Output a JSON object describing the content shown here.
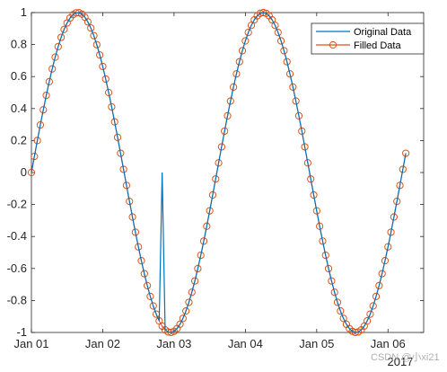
{
  "chart_data": {
    "type": "line",
    "title": "",
    "xlabel": "",
    "ylabel": "",
    "x_tick_labels": [
      "Jan 01",
      "Jan 02",
      "Jan 03",
      "Jan 04",
      "Jan 05",
      "Jan 06"
    ],
    "x_year_label": "2017",
    "y_tick_labels": [
      "-1",
      "-0.8",
      "-0.6",
      "-0.4",
      "-0.2",
      "0",
      "0.2",
      "0.4",
      "0.6",
      "0.8",
      "1"
    ],
    "ylim": [
      -1,
      1
    ],
    "xlim": [
      "2017-01-01 00:00",
      "2017-01-06 12:00"
    ],
    "grid": false,
    "legend_position": "top-right",
    "series": [
      {
        "name": "Original Data",
        "color": "#0072BD",
        "marker": "none",
        "description": "sin(2*pi*t/2.6 days) sampled hourly from 2017-01-01 00:00 to 2017-01-06 06:00 with two missing samples replaced by 0 near 2017-01-02 20:00",
        "x_start": "2017-01-01 00:00",
        "x_end": "2017-01-06 06:00",
        "period_days": 2.6,
        "missing_values_at": [
          "2017-01-02 20:00"
        ],
        "missing_value_shown_as": 0,
        "values_sample_every_6h": [
          0,
          0.56,
          0.93,
          0.97,
          0.66,
          0.12,
          -0.46,
          -0.88,
          -0.99,
          -0.75,
          -0.24,
          0.35,
          0.82,
          1.0,
          0.82,
          0.35,
          -0.24,
          -0.75,
          -0.99,
          -0.88,
          -0.46,
          0.12
        ]
      },
      {
        "name": "Filled Data",
        "color": "#D95319",
        "marker": "o",
        "description": "same sine curve with the missing samples filled by interpolation",
        "x_start": "2017-01-01 00:00",
        "x_end": "2017-01-06 06:00",
        "period_days": 2.6,
        "values_sample_every_6h": [
          0,
          0.56,
          0.93,
          0.97,
          0.66,
          0.12,
          -0.46,
          -0.88,
          -0.99,
          -0.75,
          -0.24,
          0.35,
          0.82,
          1.0,
          0.82,
          0.35,
          -0.24,
          -0.75,
          -0.99,
          -0.88,
          -0.46,
          0.12
        ]
      }
    ]
  },
  "legend": {
    "original_label": "Original Data",
    "filled_label": "Filled Data"
  },
  "watermark": "CSDN @小xi21",
  "colors": {
    "original": "#0072BD",
    "filled": "#D95319",
    "axis": "#262626"
  }
}
